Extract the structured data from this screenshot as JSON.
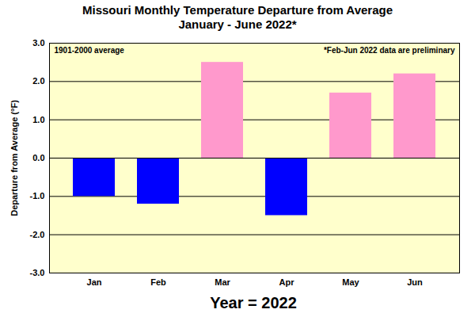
{
  "chart_data": {
    "type": "bar",
    "title": "Missouri Monthly Temperature Departure from Average",
    "subtitle": "January - June 2022*",
    "annotations": [
      "1901-2000 average",
      "*Feb-Jun 2022 data are preliminary"
    ],
    "x_label": "Year = 2022",
    "y_label": "Departure from Average (°F)",
    "categories": [
      "Jan",
      "Feb",
      "Mar",
      "Apr",
      "May",
      "Jun"
    ],
    "values": [
      -1.0,
      -1.2,
      2.5,
      -1.5,
      1.7,
      2.2
    ],
    "colors": [
      "#0000ff",
      "#0000ff",
      "#ff99cc",
      "#0000ff",
      "#ff99cc",
      "#ff99cc"
    ],
    "ylim": [
      -3,
      3
    ],
    "yticks": [
      {
        "value": -3,
        "label": "-3.0"
      },
      {
        "value": -2,
        "label": "-2.0"
      },
      {
        "value": -1,
        "label": "-1.0"
      },
      {
        "value": 0,
        "label": "0.0"
      },
      {
        "value": 1,
        "label": "1.0"
      },
      {
        "value": 2,
        "label": "2.0"
      },
      {
        "value": 3,
        "label": "3.0"
      }
    ],
    "grid": true
  }
}
